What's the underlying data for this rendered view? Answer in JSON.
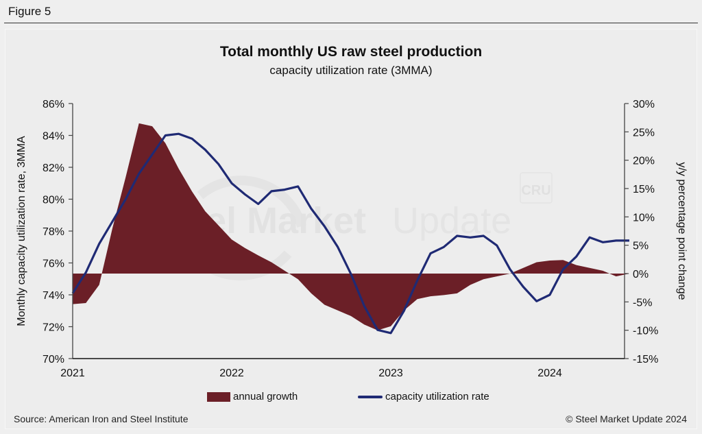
{
  "figure_label": "Figure 5",
  "source": "Source: American Iron and Steel Institute",
  "copyright": "© Steel Market Update 2024",
  "watermark": {
    "primary": "Steel Market",
    "secondary": "Update",
    "badge": "CRU"
  },
  "colors": {
    "area": "#6b1f27",
    "line": "#1f2a74",
    "axis": "#222222",
    "background": "#ededed"
  },
  "legend": [
    {
      "label": "annual growth",
      "kind": "area"
    },
    {
      "label": "capacity utilization rate",
      "kind": "line"
    }
  ],
  "chart_data": {
    "type": "line",
    "title": "Total monthly US raw steel production",
    "subtitle": "capacity utilization rate (3MMA)",
    "xlabel": "",
    "ylabel": "Monthly capacity utilization rate, 3MMA",
    "y2label": "y/y percentage point change",
    "ylim": [
      70,
      86
    ],
    "y2lim": [
      -15,
      30
    ],
    "yticks": [
      "70%",
      "72%",
      "74%",
      "76%",
      "78%",
      "80%",
      "82%",
      "84%",
      "86%"
    ],
    "y2ticks": [
      "-15%",
      "-10%",
      "-5%",
      "0%",
      "5%",
      "10%",
      "15%",
      "20%",
      "25%",
      "30%"
    ],
    "xticks": [
      "2021",
      "2022",
      "2023",
      "2024"
    ],
    "grid": false,
    "legend_position": "bottom",
    "x": [
      "2021-01",
      "2021-02",
      "2021-03",
      "2021-04",
      "2021-05",
      "2021-06",
      "2021-07",
      "2021-08",
      "2021-09",
      "2021-10",
      "2021-11",
      "2021-12",
      "2022-01",
      "2022-02",
      "2022-03",
      "2022-04",
      "2022-05",
      "2022-06",
      "2022-07",
      "2022-08",
      "2022-09",
      "2022-10",
      "2022-11",
      "2022-12",
      "2023-01",
      "2023-02",
      "2023-03",
      "2023-04",
      "2023-05",
      "2023-06",
      "2023-07",
      "2023-08",
      "2023-09",
      "2023-10",
      "2023-11",
      "2023-12",
      "2024-01",
      "2024-02",
      "2024-03",
      "2024-04",
      "2024-05",
      "2024-06",
      "2024-07"
    ],
    "series": [
      {
        "name": "capacity utilization rate",
        "axis": "left",
        "type": "line",
        "values": [
          74.1,
          75.4,
          77.2,
          78.6,
          80.0,
          81.6,
          82.8,
          84.0,
          84.1,
          83.8,
          83.1,
          82.2,
          81.0,
          80.3,
          79.7,
          80.5,
          80.6,
          80.8,
          79.4,
          78.3,
          77.0,
          75.3,
          73.3,
          71.8,
          71.6,
          73.0,
          74.9,
          76.6,
          77.0,
          77.7,
          77.6,
          77.7,
          77.1,
          75.6,
          74.5,
          73.6,
          74.0,
          75.6,
          76.4,
          77.6,
          77.3,
          77.4,
          77.4
        ]
      },
      {
        "name": "annual growth",
        "axis": "right",
        "type": "area",
        "values": [
          -5.4,
          -5.2,
          -2.0,
          8.0,
          17.0,
          26.5,
          26.0,
          23.0,
          18.5,
          14.5,
          11.0,
          8.5,
          6.0,
          4.5,
          3.2,
          2.0,
          0.5,
          -1.0,
          -3.5,
          -5.5,
          -6.5,
          -7.5,
          -9.0,
          -10.0,
          -9.3,
          -6.5,
          -4.5,
          -4.0,
          -3.8,
          -3.5,
          -2.0,
          -1.0,
          -0.5,
          0.0,
          1.0,
          2.0,
          2.3,
          2.4,
          1.5,
          1.0,
          0.5,
          -0.5,
          0.0
        ]
      }
    ]
  }
}
